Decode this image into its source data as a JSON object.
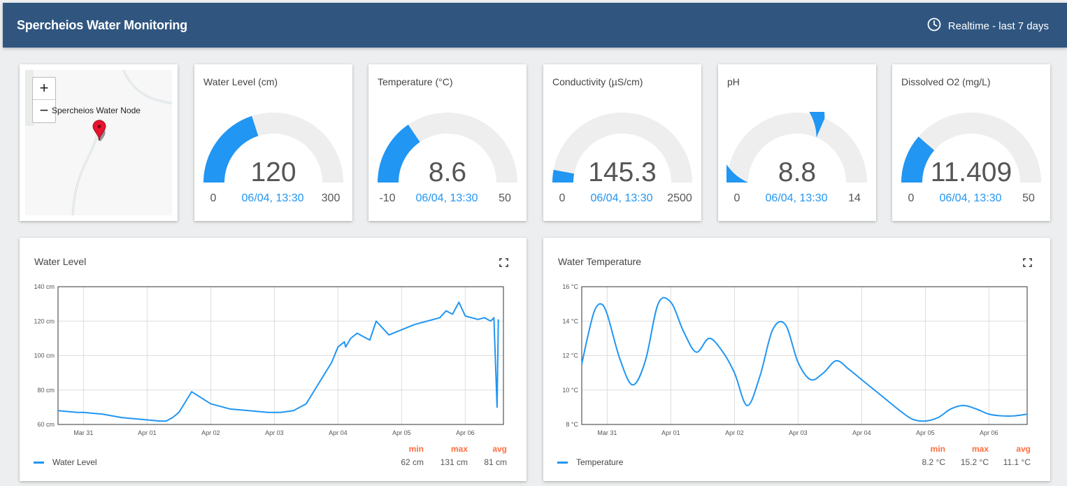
{
  "header": {
    "title": "Spercheios Water Monitoring",
    "timewindow": "Realtime - last 7 days"
  },
  "map": {
    "zoom_in": "+",
    "zoom_out": "−",
    "marker_label": "Spercheios Water Node"
  },
  "gauges": [
    {
      "title": "Water Level (cm)",
      "value": "120",
      "min": "0",
      "max": "300",
      "time": "06/04, 13:30"
    },
    {
      "title": "Temperature (°C)",
      "value": "8.6",
      "min": "-10",
      "max": "50",
      "time": "06/04, 13:30"
    },
    {
      "title": "Conductivity (µS/cm)",
      "value": "145.3",
      "min": "0",
      "max": "2500",
      "time": "06/04, 13:30"
    },
    {
      "title": "pH",
      "value": "8.8",
      "min": "0",
      "max": "14",
      "time": "06/04, 13:30"
    },
    {
      "title": "Dissolved O2 (mg/L)",
      "value": "11.409",
      "min": "0",
      "max": "50",
      "time": "06/04, 13:30"
    }
  ],
  "colors": {
    "accent": "#2196f3",
    "header": "#305680",
    "stat": "#ff6e40",
    "track": "#eeeeee"
  },
  "charts": [
    {
      "title": "Water Level",
      "legend": "Water Level",
      "stat_labels": {
        "min": "min",
        "max": "max",
        "avg": "avg"
      },
      "stats": {
        "min": "62 cm",
        "max": "131 cm",
        "avg": "81 cm"
      }
    },
    {
      "title": "Water Temperature",
      "legend": "Temperature",
      "stat_labels": {
        "min": "min",
        "max": "max",
        "avg": "avg"
      },
      "stats": {
        "min": "8.2 °C",
        "max": "15.2 °C",
        "avg": "11.1 °C"
      }
    }
  ],
  "chart_data": [
    {
      "type": "line",
      "title": "Water Level",
      "y_tick_labels": [
        "60 cm",
        "80 cm",
        "100 cm",
        "120 cm",
        "140 cm"
      ],
      "ylim": [
        60,
        140
      ],
      "x_tick_labels": [
        "Mar 31",
        "Apr 01",
        "Apr 02",
        "Apr 03",
        "Apr 04",
        "Apr 05",
        "Apr 06"
      ],
      "xlim": [
        30.6,
        37.6
      ],
      "grid": true,
      "series": [
        {
          "name": "Water Level",
          "x": [
            30.6,
            30.9,
            31.0,
            31.3,
            31.6,
            31.9,
            32.2,
            32.3,
            32.4,
            32.5,
            32.7,
            33.0,
            33.3,
            33.6,
            33.9,
            34.1,
            34.3,
            34.4,
            34.5,
            34.65,
            34.8,
            34.9,
            35.0,
            35.1,
            35.12,
            35.2,
            35.3,
            35.5,
            35.6,
            35.8,
            36.0,
            36.2,
            36.4,
            36.5,
            36.6,
            36.7,
            36.8,
            36.9,
            37.0,
            37.2,
            37.3,
            37.35,
            37.4,
            37.45,
            37.5,
            37.52
          ],
          "y": [
            68,
            67,
            67,
            66,
            64,
            63,
            62,
            62,
            64,
            67,
            79,
            72,
            69,
            68,
            67,
            67,
            68,
            70,
            72,
            81,
            90,
            96,
            105,
            108,
            105,
            110,
            113,
            109,
            120,
            112,
            115,
            118,
            120,
            121,
            122,
            126,
            124,
            131,
            123,
            121,
            122,
            121,
            120,
            122,
            70,
            121
          ]
        }
      ]
    },
    {
      "type": "line",
      "title": "Water Temperature",
      "y_tick_labels": [
        "8 °C",
        "10 °C",
        "12 °C",
        "14 °C",
        "16 °C"
      ],
      "ylim": [
        8,
        16
      ],
      "x_tick_labels": [
        "Mar 31",
        "Apr 01",
        "Apr 02",
        "Apr 03",
        "Apr 04",
        "Apr 05",
        "Apr 06"
      ],
      "xlim": [
        30.6,
        37.6
      ],
      "grid": true,
      "series": [
        {
          "name": "Temperature",
          "x": [
            30.6,
            30.7,
            30.8,
            30.9,
            31.0,
            31.2,
            31.4,
            31.6,
            31.8,
            32.0,
            32.2,
            32.4,
            32.6,
            32.8,
            33.0,
            33.2,
            33.4,
            33.6,
            33.8,
            34.0,
            34.2,
            34.4,
            34.6,
            34.8,
            35.0,
            35.2,
            35.4,
            35.6,
            35.8,
            36.0,
            36.2,
            36.4,
            36.6,
            36.8,
            37.0,
            37.2,
            37.4,
            37.6
          ],
          "y": [
            11.5,
            13.2,
            14.6,
            15.0,
            14.4,
            11.8,
            10.3,
            11.7,
            15.0,
            15.1,
            13.4,
            12.2,
            13.0,
            12.3,
            11.0,
            9.1,
            10.8,
            13.5,
            13.8,
            11.6,
            10.6,
            11.0,
            11.7,
            11.2,
            10.6,
            10.0,
            9.4,
            8.8,
            8.3,
            8.2,
            8.4,
            8.9,
            9.1,
            8.9,
            8.6,
            8.5,
            8.5,
            8.6
          ]
        }
      ]
    }
  ]
}
